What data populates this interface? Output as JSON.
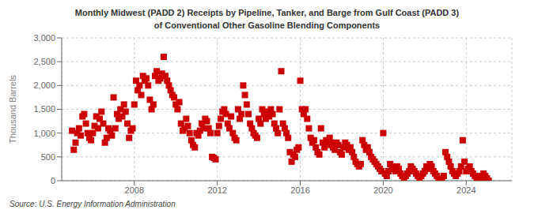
{
  "chart_data": {
    "type": "scatter",
    "title": "Monthly Midwest (PADD 2) Receipts by Pipeline, Tanker, and Barge from Gulf Coast (PADD 3)\nof Conventional Other Gasoline Blending Components",
    "ylabel": "Thousand Barrels",
    "source": "Source: U.S. Energy Information Administration",
    "color": "#cc0000",
    "marker": "square",
    "grid": true,
    "xlim": [
      2004.5,
      2026.2
    ],
    "xticks": [
      2008,
      2012,
      2016,
      2020,
      2024
    ],
    "ylim": [
      0,
      3000
    ],
    "yticks": [
      0,
      500,
      {
        "value": 1000,
        "label": "1,000"
      },
      {
        "value": 1500,
        "label": "1,500"
      },
      {
        "value": 2000,
        "label": "2,000"
      },
      {
        "value": 2500,
        "label": "2,500"
      },
      {
        "value": 3000,
        "label": "3,000"
      }
    ],
    "x": [
      2005.0,
      2005.083,
      2005.167,
      2005.25,
      2005.333,
      2005.417,
      2005.5,
      2005.583,
      2005.667,
      2005.75,
      2005.833,
      2005.917,
      2006.0,
      2006.083,
      2006.167,
      2006.25,
      2006.333,
      2006.417,
      2006.5,
      2006.583,
      2006.667,
      2006.75,
      2006.833,
      2006.917,
      2007.0,
      2007.083,
      2007.167,
      2007.25,
      2007.333,
      2007.417,
      2007.5,
      2007.583,
      2007.667,
      2007.75,
      2007.833,
      2007.917,
      2008.0,
      2008.083,
      2008.167,
      2008.25,
      2008.333,
      2008.417,
      2008.5,
      2008.583,
      2008.667,
      2008.75,
      2008.833,
      2008.917,
      2009.0,
      2009.083,
      2009.167,
      2009.25,
      2009.333,
      2009.417,
      2009.5,
      2009.583,
      2009.667,
      2009.75,
      2009.833,
      2009.917,
      2010.0,
      2010.083,
      2010.167,
      2010.25,
      2010.333,
      2010.417,
      2010.5,
      2010.583,
      2010.667,
      2010.75,
      2010.833,
      2010.917,
      2011.0,
      2011.083,
      2011.167,
      2011.25,
      2011.333,
      2011.417,
      2011.5,
      2011.583,
      2011.667,
      2011.75,
      2011.833,
      2011.917,
      2012.0,
      2012.083,
      2012.167,
      2012.25,
      2012.333,
      2012.417,
      2012.5,
      2012.583,
      2012.667,
      2012.75,
      2012.833,
      2012.917,
      2013.0,
      2013.083,
      2013.167,
      2013.25,
      2013.333,
      2013.417,
      2013.5,
      2013.583,
      2013.667,
      2013.75,
      2013.833,
      2013.917,
      2014.0,
      2014.083,
      2014.167,
      2014.25,
      2014.333,
      2014.417,
      2014.5,
      2014.583,
      2014.667,
      2014.75,
      2014.833,
      2014.917,
      2015.0,
      2015.083,
      2015.167,
      2015.25,
      2015.333,
      2015.417,
      2015.5,
      2015.583,
      2015.667,
      2015.75,
      2015.833,
      2015.917,
      2016.0,
      2016.083,
      2016.167,
      2016.25,
      2016.333,
      2016.417,
      2016.5,
      2016.583,
      2016.667,
      2016.75,
      2016.833,
      2016.917,
      2017.0,
      2017.083,
      2017.167,
      2017.25,
      2017.333,
      2017.417,
      2017.5,
      2017.583,
      2017.667,
      2017.75,
      2017.833,
      2017.917,
      2018.0,
      2018.083,
      2018.167,
      2018.25,
      2018.333,
      2018.417,
      2018.5,
      2018.583,
      2018.667,
      2018.75,
      2018.833,
      2018.917,
      2019.0,
      2019.083,
      2019.167,
      2019.25,
      2019.333,
      2019.417,
      2019.5,
      2019.583,
      2019.667,
      2019.75,
      2019.833,
      2019.917,
      2020.0,
      2020.083,
      2020.167,
      2020.25,
      2020.333,
      2020.417,
      2020.5,
      2020.583,
      2020.667,
      2020.75,
      2020.833,
      2020.917,
      2021.0,
      2021.083,
      2021.167,
      2021.25,
      2021.333,
      2021.417,
      2021.5,
      2021.583,
      2021.667,
      2021.75,
      2021.833,
      2021.917,
      2022.0,
      2022.083,
      2022.167,
      2022.25,
      2022.333,
      2022.417,
      2022.5,
      2022.583,
      2022.667,
      2022.75,
      2022.833,
      2022.917,
      2023.0,
      2023.083,
      2023.167,
      2023.25,
      2023.333,
      2023.417,
      2023.5,
      2023.583,
      2023.667,
      2023.75,
      2023.833,
      2023.917,
      2024.0,
      2024.083,
      2024.167,
      2024.25,
      2024.333,
      2024.417,
      2024.5,
      2024.583,
      2024.667,
      2024.75,
      2024.833,
      2024.917,
      2025.0,
      2025.083
    ],
    "values": [
      1050,
      650,
      800,
      1000,
      1100,
      950,
      1350,
      1400,
      1200,
      1000,
      900,
      850,
      1000,
      1150,
      1350,
      1100,
      1300,
      1450,
      1200,
      800,
      900,
      1100,
      1050,
      950,
      1750,
      1100,
      1400,
      1300,
      1500,
      1350,
      1600,
      1450,
      1200,
      900,
      1050,
      1100,
      1600,
      2100,
      1900,
      2000,
      1800,
      2200,
      2100,
      2150,
      2000,
      1700,
      1500,
      1600,
      2200,
      2300,
      2100,
      2150,
      2250,
      2600,
      2200,
      2100,
      2000,
      1900,
      1800,
      1750,
      1600,
      1500,
      1650,
      1200,
      1050,
      1100,
      1300,
      1150,
      1000,
      850,
      750,
      700,
      1000,
      950,
      1050,
      1200,
      1100,
      1300,
      1250,
      1100,
      1000,
      500,
      480,
      450,
      1000,
      1150,
      1300,
      1450,
      1500,
      1400,
      1200,
      1100,
      1350,
      1000,
      900,
      850,
      1500,
      1300,
      1400,
      2000,
      1800,
      1600,
      1400,
      1200,
      1100,
      1000,
      950,
      900,
      1300,
      1200,
      1500,
      1400,
      1300,
      1450,
      1350,
      1500,
      1400,
      1200,
      1100,
      1000,
      1500,
      2300,
      1200,
      1100,
      1000,
      900,
      600,
      400,
      550,
      500,
      650,
      700,
      2100,
      1500,
      1400,
      1500,
      1300,
      1100,
      900,
      800,
      850,
      700,
      600,
      550,
      1100,
      800,
      700,
      850,
      750,
      900,
      800,
      700,
      650,
      800,
      750,
      600,
      550,
      700,
      800,
      750,
      650,
      700,
      600,
      500,
      400,
      350,
      300,
      350,
      850,
      750,
      650,
      700,
      600,
      500,
      450,
      400,
      350,
      300,
      250,
      200,
      1000,
      150,
      100,
      200,
      350,
      300,
      250,
      200,
      300,
      250,
      150,
      100,
      50,
      100,
      150,
      200,
      300,
      250,
      200,
      150,
      100,
      50,
      100,
      150,
      200,
      300,
      250,
      350,
      300,
      200,
      150,
      100,
      50,
      0,
      50,
      100,
      600,
      500,
      400,
      300,
      200,
      150,
      100,
      150,
      200,
      300,
      850,
      400,
      200,
      250,
      300,
      200,
      150,
      100,
      50,
      0,
      100,
      50,
      150,
      100,
      50,
      0
    ]
  }
}
